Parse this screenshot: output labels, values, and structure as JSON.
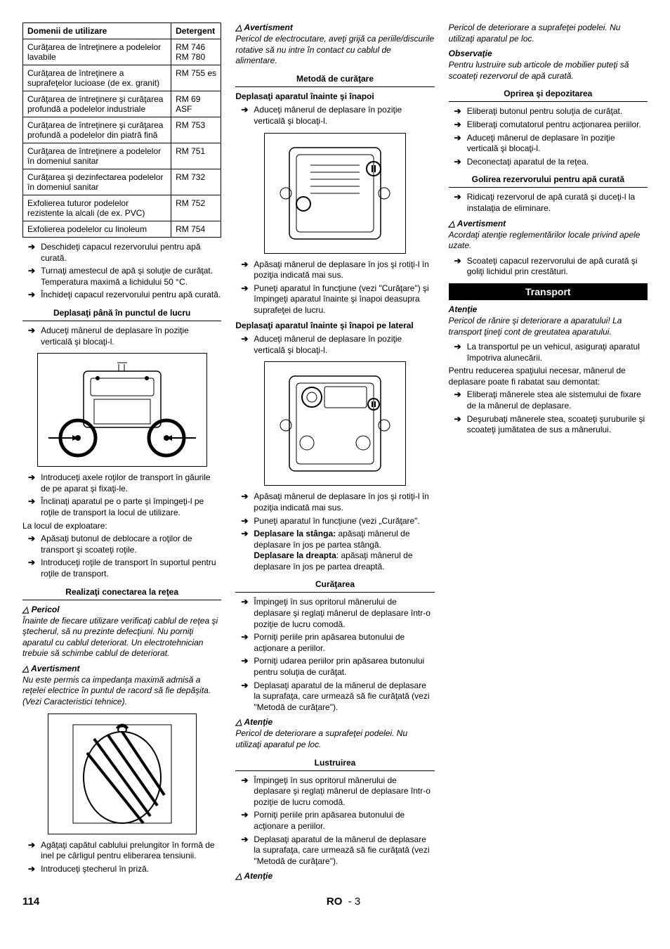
{
  "table": {
    "headers": [
      "Domenii de utilizare",
      "Detergent"
    ],
    "rows": [
      [
        "Curăţarea de întreţinere a podelelor lavabile",
        "RM 746\nRM 780"
      ],
      [
        "Curăţarea de întreţinere a suprafeţelor lucioase (de ex. granit)",
        "RM 755 es"
      ],
      [
        "Curăţarea de întreţinere şi curăţarea profundă a podelelor industriale",
        "RM 69 ASF"
      ],
      [
        "Curăţarea de întreţinere şi curăţarea profundă a podelelor din piatră fină",
        "RM 753"
      ],
      [
        "Curăţarea de întreţinere a podelelor în domeniul sanitar",
        "RM 751"
      ],
      [
        "Curăţarea şi dezinfectarea podelelor în domeniul sanitar",
        "RM 732"
      ],
      [
        "Exfolierea tuturor podelelor rezistente la alcali (de ex. PVC)",
        "RM 752"
      ],
      [
        "Exfolierea podelelor cu linoleum",
        "RM 754"
      ]
    ]
  },
  "col1_after_table": [
    "Deschideţi capacul rezervorului pentru apă curată.",
    "Turnaţi amestecul de apă şi soluţie de curăţat. Temperatura maximă a lichidului 50 °C.",
    "Închideţi capacul rezervorului pentru apă curată."
  ],
  "sec_deplasati_lucru": "Deplasaţi până în punctul de lucru",
  "col1_sec1_item": "Aduceţi mânerul de deplasare în poziţie verticală şi blocaţi-l.",
  "col1_after_fig1": [
    "Introduceţi axele roţilor de transport în găurile de pe aparat şi fixaţi-le.",
    "Înclinaţi aparatul pe o parte şi împingeţi-l pe roţile de transport la locul de utilizare."
  ],
  "col1_plain": "La locul de exploatare:",
  "col1_after_plain": [
    "Apăsaţi butonul de deblocare a roţilor de transport şi scoateţi roţile.",
    "Introduceţi roţile de transport în suportul pentru roţile de transport."
  ],
  "sec_retea": "Realizaţi conectarea la reţea",
  "col1_pericol": "Pericol",
  "col1_pericol_text": "Înainte de fiecare utilizare verificaţi cablul de reţea şi ştecherul, să nu prezinte defecţiuni. Nu porniţi aparatul cu cablul deteriorat. Un electrotehnician trebuie să schimbe cablul de deteriorat.",
  "col2_avert1": "Avertisment",
  "col2_avert1_text": "Nu este permis ca impedanţa maximă admisă a reţelei electrice în puntul de racord să fie depăşita. (Vezi Caracteristici tehnice).",
  "col2_after_fig2": [
    "Agăţaţi capătul cablului prelungitor în formă de inel pe cârligul pentru eliberarea tensiunii.",
    "Introduceţi ştecherul în priză."
  ],
  "col2_avert2": "Avertisment",
  "col2_avert2_text": "Pericol de electrocutare, aveţi grijă ca periile/discurile rotative să nu intre în contact cu cablul de alimentare.",
  "sec_metoda": "Metodă de curăţare",
  "col2_sub1": "Deplasaţi aparatul înainte şi înapoi",
  "col2_sub1_item": "Aduceţi mânerul de deplasare în poziţie verticală şi blocaţi-l.",
  "col2_after_fig3": [
    "Apăsaţi mânerul de deplasare în jos şi rotiţi-l în poziţia indicată mai sus.",
    "Puneţi aparatul în funcţiune (vezi \"Curăţare\") şi împingeţi aparatul înainte şi înapoi deasupra suprafeţei de lucru."
  ],
  "col2_sub2": "Deplasaţi aparatul înainte şi înapoi pe lateral",
  "col2_sub2_item": "Aduceţi mânerul de deplasare în poziţie verticală şi blocaţi-l.",
  "col2_after_fig4": [
    "Apăsaţi mânerul de deplasare în jos şi rotiţi-l în poziţia indicată mai sus.",
    "Puneţi aparatul în funcţiune (vezi „Curăţare\"."
  ],
  "col2_depl_stanga_label": "Deplasare la stânga:",
  "col2_depl_stanga_text": " apăsaţi mânerul de deplasare în jos pe partea stângă.",
  "col2_depl_dreapta_label": "Deplasare la dreapta",
  "col2_depl_dreapta_text": ": apăsaţi mânerul de deplasare în jos pe partea dreaptă.",
  "sec_curatarea": "Curăţarea",
  "col3_curat": [
    "Împingeţi în sus opritorul mânerului de deplasare şi reglaţi mânerul de deplasare într-o poziţie de lucru comodă.",
    "Porniţi periile prin apăsarea butonului de acţionare a periilor.",
    "Porniţi udarea periilor prin apăsarea butonului pentru soluţia de curăţat.",
    "Deplasaţi aparatul de la mânerul de deplasare la suprafaţa, care urmează să fie curăţată (vezi \"Metodă de curăţare\")."
  ],
  "col3_aten1": "Atenţie",
  "col3_aten1_text": "Pericol de deteriorare a suprafeţei podelei. Nu utilizaţi aparatul pe loc.",
  "sec_lustruirea": "Lustruirea",
  "col3_lustr": [
    "Împingeţi în sus opritorul mânerului de deplasare şi reglaţi mânerul de deplasare într-o poziţie de lucru comodă.",
    "Porniţi periile prin apăsarea butonului de acţionare a periilor.",
    "Deplasaţi aparatul de la mânerul de deplasare la suprafaţa, care urmează să fie curăţată (vezi \"Metodă de curăţare\")."
  ],
  "col3_aten2": "Atenţie",
  "col3_aten2_text": "Pericol de deteriorare a suprafeţei podelei. Nu utilizaţi aparatul pe loc.",
  "col3_obs": "Observaţie",
  "col3_obs_text": "Pentru lustruire sub articole de mobilier puteţi să scoateţi rezervorul de apă curată.",
  "sec_oprirea": "Oprirea şi depozitarea",
  "col3_oprirea": [
    "Eliberaţi butonul pentru soluţia de curăţat.",
    "Eliberaţi comutatorul pentru acţionarea periilor.",
    "Aduceţi mânerul de deplasare în poziţie verticală şi blocaţi-l.",
    "Deconectaţi aparatul de la reţea."
  ],
  "sec_golirea": "Golirea rezervorului pentru apă curată",
  "col3_golirea": "Ridicaţi rezervorul de apă curată şi duceţi-l la instalaţia de eliminare.",
  "col3_avert": "Avertisment",
  "col3_avert_text": "Acordaţi atenţie reglementărilor locale privind apele uzate.",
  "col3_golirea2": "Scoateţi capacul rezervorului de apă curată şi goliţi lichidul prin crestături.",
  "sec_transport": "Transport",
  "col3_aten3": "Atenţie",
  "col3_aten3_text": "Pericol de rănire şi deteriorare a aparatului! La transport ţineţi cont de greutatea aparatului.",
  "col3_transport1": "La transportul pe un vehicul, asiguraţi aparatul împotriva alunecării.",
  "col3_plain": "Pentru reducerea spaţiului necesar, mânerul de deplasare poate fi rabatat sau demontat:",
  "col3_transport2": [
    "Eliberaţi mânerele stea ale sistemului de fixare de la mânerul de deplasare.",
    "Deşurubaţi mânerele stea, scoateţi şuruburile şi scoateţi jumătatea de sus a mânerului."
  ],
  "footer": {
    "page": "114",
    "lang": "RO",
    "sub": "- 3"
  }
}
